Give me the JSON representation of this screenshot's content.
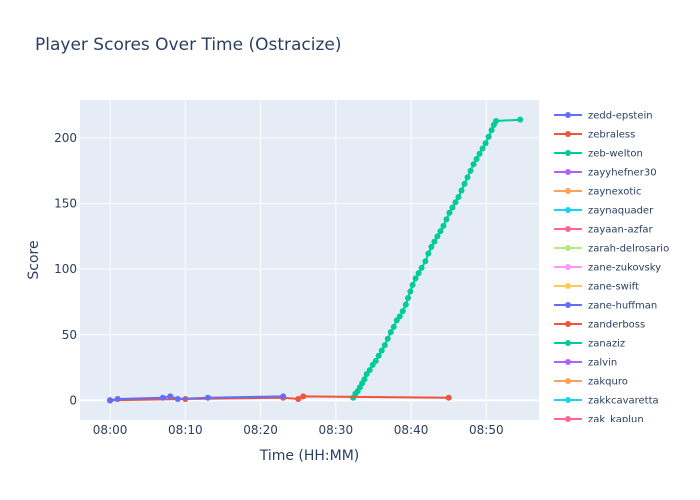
{
  "chart_data": {
    "type": "line",
    "title": "Player Scores Over Time (Ostracize)",
    "xlabel": "Time (HH:MM)",
    "ylabel": "Score",
    "x_ticks": [
      "08:00",
      "08:10",
      "08:20",
      "08:30",
      "08:40",
      "08:50"
    ],
    "y_ticks": [
      0,
      50,
      100,
      150,
      200
    ],
    "xlim": [
      "07:56",
      "08:57"
    ],
    "ylim": [
      -15,
      229
    ],
    "grid": true,
    "legend_position": "right",
    "series": [
      {
        "name": "zedd-epstein",
        "color": "#636efa",
        "points": [
          [
            "08:00",
            0
          ],
          [
            "08:01",
            1
          ],
          [
            "08:07",
            2
          ],
          [
            "08:08",
            3
          ],
          [
            "08:09",
            1
          ],
          [
            "08:13",
            2
          ],
          [
            "08:23",
            3
          ]
        ]
      },
      {
        "name": "zebraless",
        "color": "#EF553B",
        "points": [
          [
            "08:00",
            0
          ],
          [
            "08:10",
            1
          ],
          [
            "08:23",
            2
          ],
          [
            "08:25",
            1
          ],
          [
            "08:25:40",
            3
          ],
          [
            "08:45",
            2
          ]
        ]
      },
      {
        "name": "zeb-welton",
        "color": "#00cc96",
        "points": [
          [
            "08:32.3",
            2
          ],
          [
            "08:32.6",
            5
          ],
          [
            "08:32.9",
            7
          ],
          [
            "08:33.2",
            10
          ],
          [
            "08:33.5",
            13
          ],
          [
            "08:33.8",
            16
          ],
          [
            "08:34.1",
            20
          ],
          [
            "08:34.5",
            23
          ],
          [
            "08:34.9",
            27
          ],
          [
            "08:35.3",
            30
          ],
          [
            "08:35.7",
            34
          ],
          [
            "08:36.1",
            38
          ],
          [
            "08:36.5",
            42
          ],
          [
            "08:36.9",
            47
          ],
          [
            "08:37.3",
            52
          ],
          [
            "08:37.7",
            56
          ],
          [
            "08:38.1",
            61
          ],
          [
            "08:38.5",
            64
          ],
          [
            "08:38.9",
            68
          ],
          [
            "08:39.3",
            73
          ],
          [
            "08:39.6",
            78
          ],
          [
            "08:39.9",
            83
          ],
          [
            "08:40.2",
            88
          ],
          [
            "08:40.6",
            93
          ],
          [
            "08:41.0",
            97
          ],
          [
            "08:41.4",
            101
          ],
          [
            "08:41.9",
            106
          ],
          [
            "08:42.3",
            112
          ],
          [
            "08:42.7",
            117
          ],
          [
            "08:43.1",
            121
          ],
          [
            "08:43.5",
            125
          ],
          [
            "08:43.9",
            129
          ],
          [
            "08:44.3",
            133
          ],
          [
            "08:44.7",
            138
          ],
          [
            "08:45.1",
            143
          ],
          [
            "08:45.5",
            147
          ],
          [
            "08:45.9",
            151
          ],
          [
            "08:46.3",
            155
          ],
          [
            "08:46.7",
            160
          ],
          [
            "08:47.1",
            165
          ],
          [
            "08:47.5",
            170
          ],
          [
            "08:47.9",
            175
          ],
          [
            "08:48.3",
            180
          ],
          [
            "08:48.7",
            184
          ],
          [
            "08:49.1",
            188
          ],
          [
            "08:49.5",
            192
          ],
          [
            "08:49.9",
            196
          ],
          [
            "08:50.3",
            201
          ],
          [
            "08:50.7",
            206
          ],
          [
            "08:51.0",
            210
          ],
          [
            "08:51.3",
            213
          ],
          [
            "08:54.5",
            214
          ]
        ]
      },
      {
        "name": "zayyhefner30",
        "color": "#ab63fa",
        "points": [
          [
            "08:00",
            0
          ]
        ]
      },
      {
        "name": "zaynexotic",
        "color": "#FFA15A",
        "points": [
          [
            "08:00",
            0
          ]
        ]
      },
      {
        "name": "zaynaquader",
        "color": "#19d3f3",
        "points": [
          [
            "08:00",
            0
          ]
        ]
      },
      {
        "name": "zayaan-azfar",
        "color": "#FF6692",
        "points": [
          [
            "08:00",
            0
          ]
        ]
      },
      {
        "name": "zarah-delrosario",
        "color": "#B6E880",
        "points": [
          [
            "08:00",
            0
          ]
        ]
      },
      {
        "name": "zane-zukovsky",
        "color": "#FF97FF",
        "points": [
          [
            "08:00",
            0
          ]
        ]
      },
      {
        "name": "zane-swift",
        "color": "#FECB52",
        "points": [
          [
            "08:00",
            0
          ]
        ]
      },
      {
        "name": "zane-huffman",
        "color": "#636efa",
        "points": [
          [
            "08:00",
            0
          ]
        ]
      },
      {
        "name": "zanderboss",
        "color": "#EF553B",
        "points": [
          [
            "08:00",
            0
          ]
        ]
      },
      {
        "name": "zanaziz",
        "color": "#00cc96",
        "points": [
          [
            "08:00",
            0
          ]
        ]
      },
      {
        "name": "zalvin",
        "color": "#ab63fa",
        "points": [
          [
            "08:00",
            0
          ]
        ]
      },
      {
        "name": "zakquro",
        "color": "#FFA15A",
        "points": [
          [
            "08:00",
            0
          ]
        ]
      },
      {
        "name": "zakkcavaretta",
        "color": "#19d3f3",
        "points": [
          [
            "08:00",
            0
          ]
        ]
      },
      {
        "name": "zak_kaplun",
        "color": "#FF6692",
        "points": [
          [
            "08:00",
            0
          ]
        ]
      }
    ]
  }
}
